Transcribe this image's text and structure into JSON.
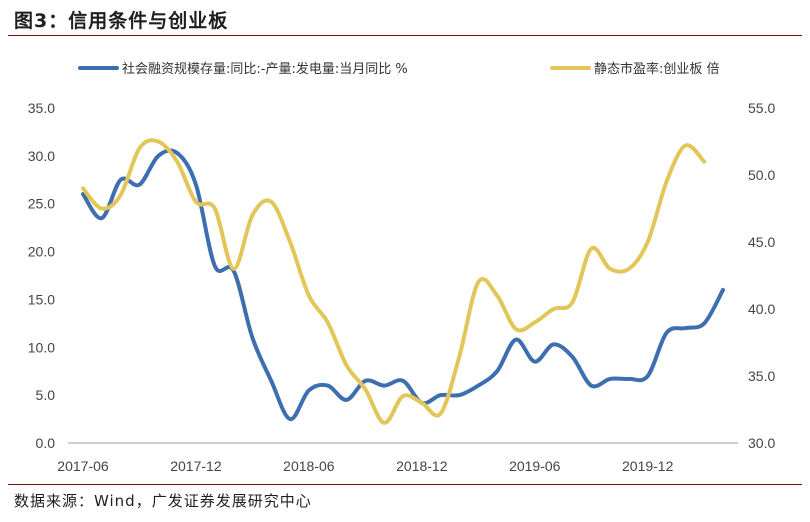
{
  "header": {
    "title": "图3：信用条件与创业板"
  },
  "footer": {
    "source": "数据来源：Wind，广发证券发展研究中心"
  },
  "colors": {
    "series1": "#3d6fb0",
    "series2": "#e3c65a",
    "rule": "#7a0e0e",
    "axis": "#999999"
  },
  "chart_data": {
    "type": "line",
    "title": "信用条件与创业板",
    "x_labels": [
      "2017-06",
      "2017-12",
      "2018-06",
      "2018-12",
      "2019-06",
      "2019-12"
    ],
    "x_label_months": [
      0,
      6,
      12,
      18,
      24,
      30
    ],
    "x_range": [
      0,
      34
    ],
    "left_axis": {
      "ylim": [
        0,
        35
      ],
      "ticks": [
        "0.0",
        "5.0",
        "10.0",
        "15.0",
        "20.0",
        "25.0",
        "30.0",
        "35.0"
      ],
      "tick_values": [
        0,
        5,
        10,
        15,
        20,
        25,
        30,
        35
      ]
    },
    "right_axis": {
      "ylim": [
        30,
        55
      ],
      "ticks": [
        "30.0",
        "35.0",
        "40.0",
        "45.0",
        "50.0",
        "55.0"
      ],
      "tick_values": [
        30,
        35,
        40,
        45,
        50,
        55
      ]
    },
    "legend_position": "top",
    "series": [
      {
        "name": "社会融资规模存量:同比:-产量:发电量:当月同比 %",
        "axis": "left",
        "x": [
          0,
          1,
          2,
          3,
          4,
          5,
          6,
          7,
          8,
          9,
          10,
          11,
          12,
          13,
          14,
          15,
          16,
          17,
          18,
          19,
          20,
          21,
          22,
          23,
          24,
          25,
          26,
          27,
          28,
          29,
          30,
          31,
          32,
          33,
          34
        ],
        "values": [
          26,
          23.5,
          27.5,
          27,
          30,
          30.3,
          27,
          18.5,
          18,
          11,
          6.5,
          2.5,
          5.5,
          6,
          4.5,
          6.5,
          6,
          6.5,
          4.2,
          5,
          5,
          6,
          7.5,
          10.8,
          8.5,
          10.3,
          9,
          6,
          6.7,
          6.7,
          7,
          11.5,
          12,
          12.5,
          16
        ]
      },
      {
        "name": "静态市盈率:创业板 倍",
        "axis": "right",
        "x": [
          0,
          1,
          2,
          3,
          4,
          5,
          6,
          7,
          8,
          9,
          10,
          11,
          12,
          13,
          14,
          15,
          16,
          17,
          18,
          19,
          20,
          21,
          22,
          23,
          24,
          25,
          26,
          27,
          28,
          29,
          30,
          31,
          32,
          33,
          34
        ],
        "values": [
          49,
          47.5,
          48.5,
          52,
          52.5,
          51,
          48,
          47.5,
          43,
          47,
          48,
          45,
          41,
          39,
          35.8,
          34,
          31.5,
          33.5,
          33,
          32.2,
          36.5,
          42,
          41,
          38.5,
          39,
          40,
          40.5,
          44.5,
          43,
          43,
          45,
          49.5,
          52.2,
          51,
          null
        ]
      }
    ]
  }
}
